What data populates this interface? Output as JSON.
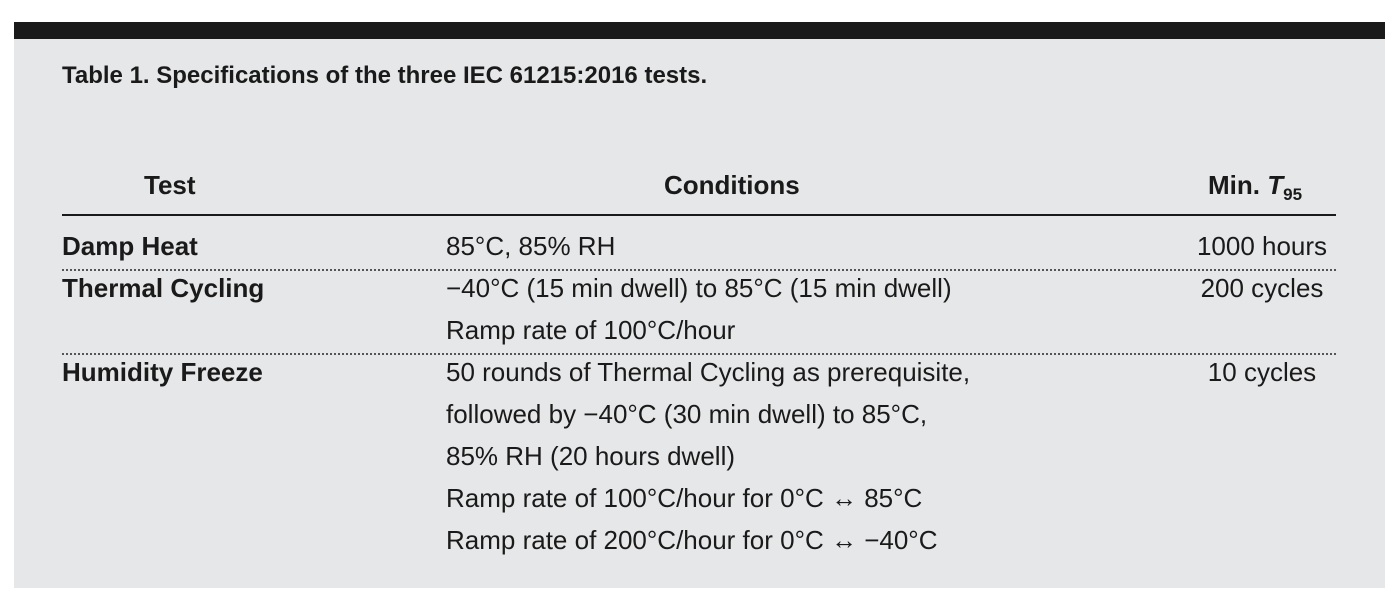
{
  "title": "Table 1. Specifications of the three IEC 61215:2016 tests.",
  "table": {
    "headers": [
      "Test",
      "Conditions",
      {
        "text": "Min.",
        "italic": "T",
        "subscript": "95"
      }
    ],
    "rows": [
      {
        "test": "Damp Heat",
        "conditions": [
          "85°C, 85% RH"
        ],
        "min": "1000 hours"
      },
      {
        "test": "Thermal Cycling",
        "conditions": [
          "−40°C (15 min dwell) to 85°C (15 min dwell)",
          "Ramp rate of 100°C/hour"
        ],
        "min": "200 cycles"
      },
      {
        "test": "Humidity Freeze",
        "conditions": [
          "50 rounds of Thermal Cycling as prerequisite,",
          "followed by −40°C (30 min dwell) to 85°C,",
          "85% RH (20 hours dwell)",
          "Ramp rate of 100°C/hour for 0°C ↔ 85°C",
          "Ramp rate of 200°C/hour for 0°C ↔ −40°C"
        ],
        "min": "10 cycles"
      }
    ]
  }
}
